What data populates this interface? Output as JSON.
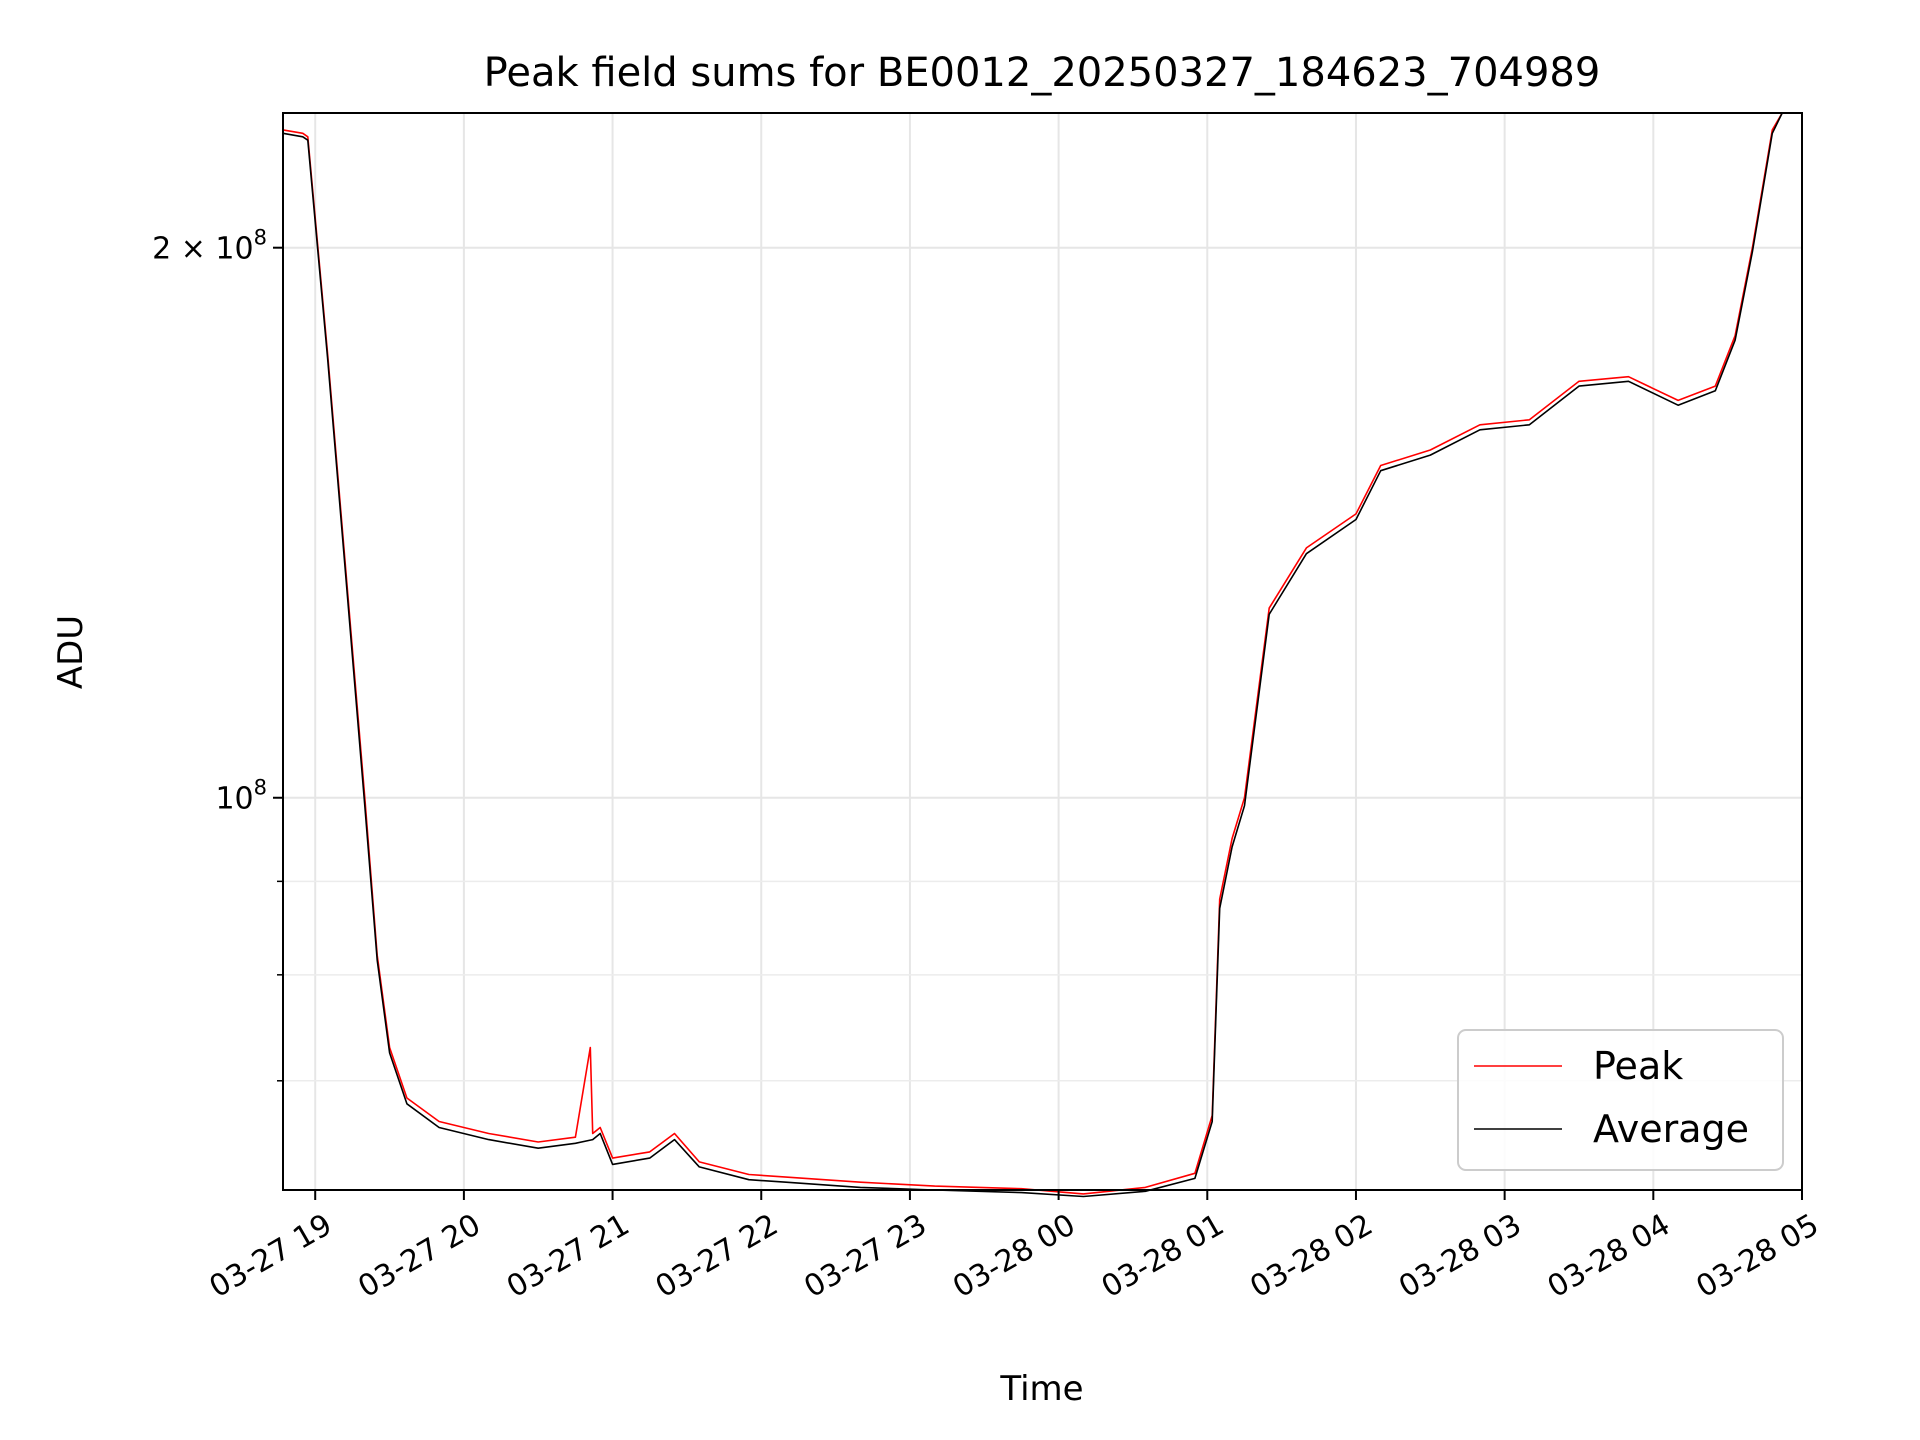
{
  "chart_data": {
    "type": "line",
    "title": "Peak field sums for BE0012_20250327_184623_704989",
    "xlabel": "Time",
    "ylabel": "ADU",
    "x_axis": "time (hours since 2025-03-27 00:00)",
    "yscale": "log",
    "xlim": [
      "03-27 18:47",
      "03-28 05:00"
    ],
    "ylim": [
      61000000,
      237000000
    ],
    "grid": true,
    "legend_position": "lower-right",
    "x_ticks": [
      {
        "value": "03-27 19",
        "label": "03-27 19"
      },
      {
        "value": "03-27 20",
        "label": "03-27 20"
      },
      {
        "value": "03-27 21",
        "label": "03-27 21"
      },
      {
        "value": "03-27 22",
        "label": "03-27 22"
      },
      {
        "value": "03-27 23",
        "label": "03-27 23"
      },
      {
        "value": "03-28 00",
        "label": "03-28 00"
      },
      {
        "value": "03-28 01",
        "label": "03-28 01"
      },
      {
        "value": "03-28 02",
        "label": "03-28 02"
      },
      {
        "value": "03-28 03",
        "label": "03-28 03"
      },
      {
        "value": "03-28 04",
        "label": "03-28 04"
      },
      {
        "value": "03-28 05",
        "label": "03-28 05"
      }
    ],
    "y_ticks": [
      {
        "value": 200000000,
        "label_base": "2 × 10",
        "label_exp": "8"
      },
      {
        "value": 100000000,
        "label_base": "10",
        "label_exp": "8"
      }
    ],
    "y_minor_ticks": [
      60000000,
      70000000,
      80000000,
      90000000
    ],
    "series": [
      {
        "name": "Peak",
        "color": "#ff0000",
        "points": [
          [
            "03-27 18:47",
            232000000
          ],
          [
            "03-27 18:55",
            231000000
          ],
          [
            "03-27 18:57",
            230000000
          ],
          [
            "03-27 19:05",
            175000000
          ],
          [
            "03-27 19:12",
            135000000
          ],
          [
            "03-27 19:20",
            100000000
          ],
          [
            "03-27 19:25",
            82000000
          ],
          [
            "03-27 19:30",
            73000000
          ],
          [
            "03-27 19:37",
            68500000
          ],
          [
            "03-27 19:50",
            66500000
          ],
          [
            "03-27 20:10",
            65500000
          ],
          [
            "03-27 20:30",
            64800000
          ],
          [
            "03-27 20:45",
            65200000
          ],
          [
            "03-27 20:51",
            73000000
          ],
          [
            "03-27 20:52",
            65500000
          ],
          [
            "03-27 20:55",
            66000000
          ],
          [
            "03-27 21:00",
            63500000
          ],
          [
            "03-27 21:15",
            64000000
          ],
          [
            "03-27 21:25",
            65500000
          ],
          [
            "03-27 21:35",
            63200000
          ],
          [
            "03-27 21:55",
            62200000
          ],
          [
            "03-27 22:10",
            62000000
          ],
          [
            "03-27 22:40",
            61600000
          ],
          [
            "03-27 23:10",
            61300000
          ],
          [
            "03-27 23:45",
            61100000
          ],
          [
            "03-28 00:10",
            60700000
          ],
          [
            "03-28 00:35",
            61200000
          ],
          [
            "03-28 00:55",
            62300000
          ],
          [
            "03-28 01:02",
            67000000
          ],
          [
            "03-28 01:05",
            88000000
          ],
          [
            "03-28 01:10",
            95000000
          ],
          [
            "03-28 01:15",
            100000000
          ],
          [
            "03-28 01:25",
            127000000
          ],
          [
            "03-28 01:40",
            137000000
          ],
          [
            "03-28 02:00",
            143000000
          ],
          [
            "03-28 02:10",
            152000000
          ],
          [
            "03-28 02:30",
            155000000
          ],
          [
            "03-28 02:50",
            160000000
          ],
          [
            "03-28 03:10",
            161000000
          ],
          [
            "03-28 03:30",
            169000000
          ],
          [
            "03-28 03:50",
            170000000
          ],
          [
            "03-28 04:10",
            165000000
          ],
          [
            "03-28 04:25",
            168000000
          ],
          [
            "03-28 04:33",
            179000000
          ],
          [
            "03-28 04:40",
            200000000
          ],
          [
            "03-28 04:48",
            232000000
          ],
          [
            "03-28 04:52",
            237000000
          ],
          [
            "03-28 05:00",
            237000000
          ]
        ]
      },
      {
        "name": "Average",
        "color": "#000000",
        "points": [
          [
            "03-27 18:47",
            231000000
          ],
          [
            "03-27 18:55",
            230000000
          ],
          [
            "03-27 18:57",
            229000000
          ],
          [
            "03-27 19:05",
            174000000
          ],
          [
            "03-27 19:12",
            134000000
          ],
          [
            "03-27 19:20",
            99000000
          ],
          [
            "03-27 19:25",
            81500000
          ],
          [
            "03-27 19:30",
            72500000
          ],
          [
            "03-27 19:37",
            68000000
          ],
          [
            "03-27 19:50",
            66000000
          ],
          [
            "03-27 20:10",
            65000000
          ],
          [
            "03-27 20:30",
            64300000
          ],
          [
            "03-27 20:45",
            64700000
          ],
          [
            "03-27 20:52",
            65000000
          ],
          [
            "03-27 20:55",
            65500000
          ],
          [
            "03-27 21:00",
            63000000
          ],
          [
            "03-27 21:15",
            63500000
          ],
          [
            "03-27 21:25",
            65000000
          ],
          [
            "03-27 21:35",
            62800000
          ],
          [
            "03-27 21:55",
            61800000
          ],
          [
            "03-27 22:10",
            61600000
          ],
          [
            "03-27 22:40",
            61200000
          ],
          [
            "03-27 23:10",
            61000000
          ],
          [
            "03-27 23:45",
            60800000
          ],
          [
            "03-28 00:10",
            60500000
          ],
          [
            "03-28 00:35",
            60900000
          ],
          [
            "03-28 00:55",
            61900000
          ],
          [
            "03-28 01:02",
            66500000
          ],
          [
            "03-28 01:05",
            87000000
          ],
          [
            "03-28 01:10",
            94000000
          ],
          [
            "03-28 01:15",
            99000000
          ],
          [
            "03-28 01:25",
            126000000
          ],
          [
            "03-28 01:40",
            136000000
          ],
          [
            "03-28 02:00",
            142000000
          ],
          [
            "03-28 02:10",
            151000000
          ],
          [
            "03-28 02:30",
            154000000
          ],
          [
            "03-28 02:50",
            159000000
          ],
          [
            "03-28 03:10",
            160000000
          ],
          [
            "03-28 03:30",
            168000000
          ],
          [
            "03-28 03:50",
            169000000
          ],
          [
            "03-28 04:10",
            164000000
          ],
          [
            "03-28 04:25",
            167000000
          ],
          [
            "03-28 04:33",
            178000000
          ],
          [
            "03-28 04:40",
            199000000
          ],
          [
            "03-28 04:48",
            231000000
          ],
          [
            "03-28 04:52",
            237000000
          ],
          [
            "03-28 05:00",
            237000000
          ]
        ]
      }
    ]
  }
}
